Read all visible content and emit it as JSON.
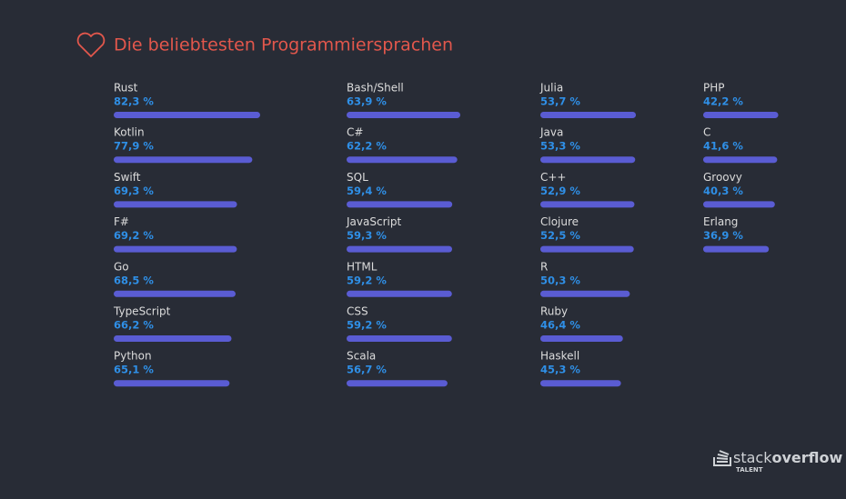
{
  "chart_data": {
    "type": "bar",
    "title": "Die beliebtesten Programmiersprachen",
    "categories": [
      "Rust",
      "Kotlin",
      "Swift",
      "F#",
      "Go",
      "TypeScript",
      "Python",
      "Bash/Shell",
      "C#",
      "SQL",
      "JavaScript",
      "HTML",
      "CSS",
      "Scala",
      "Julia",
      "Java",
      "C++",
      "Clojure",
      "R",
      "Ruby",
      "Haskell",
      "PHP",
      "C",
      "Groovy",
      "Erlang"
    ],
    "values": [
      82.3,
      77.9,
      69.3,
      69.2,
      68.5,
      66.2,
      65.1,
      63.9,
      62.2,
      59.4,
      59.3,
      59.2,
      59.2,
      56.7,
      53.7,
      53.3,
      52.9,
      52.5,
      50.3,
      46.4,
      45.3,
      42.2,
      41.6,
      40.3,
      36.9
    ],
    "value_labels": [
      "82,3 %",
      "77,9 %",
      "69,3 %",
      "69,2 %",
      "68,5 %",
      "66,2 %",
      "65,1 %",
      "63,9 %",
      "62,2 %",
      "59,4 %",
      "59,3 %",
      "59,2 %",
      "59,2 %",
      "56,7 %",
      "53,7 %",
      "53,3 %",
      "52,9 %",
      "52,5 %",
      "50,3 %",
      "46,4 %",
      "45,3 %",
      "42,2 %",
      "41,6 %",
      "40,3 %",
      "36,9 %"
    ],
    "color": "#5a5cd3"
  },
  "footer": {
    "brand": [
      "stack",
      "overflow"
    ],
    "sub": "TALENT"
  }
}
